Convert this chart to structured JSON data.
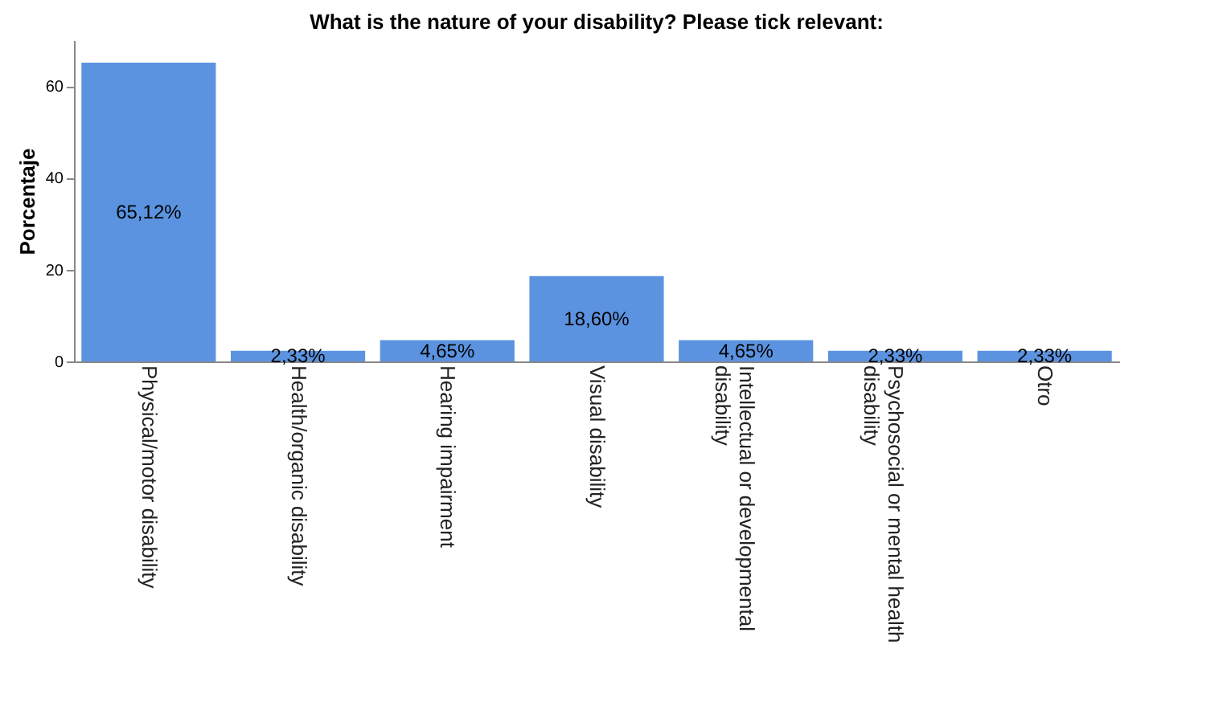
{
  "chart_data": {
    "type": "bar",
    "title": "What is the nature of your disability? Please tick relevant:",
    "ylabel": "Porcentaje",
    "categories": [
      "Physical/motor disability",
      "Health/organic disability",
      "Hearing impairment",
      "Visual disability",
      "Intellectual or developmental disability",
      "Psychosocial or mental health disability",
      "Otro"
    ],
    "values": [
      65.12,
      2.33,
      4.65,
      18.6,
      4.65,
      2.33,
      2.33
    ],
    "value_labels": [
      "65,12%",
      "2,33%",
      "4,65%",
      "18,60%",
      "4,65%",
      "2,33%",
      "2,33%"
    ],
    "color": "#5b93e0",
    "ylim": [
      0,
      70
    ],
    "yticks": [
      0,
      20,
      40,
      60
    ],
    "grid": false
  }
}
